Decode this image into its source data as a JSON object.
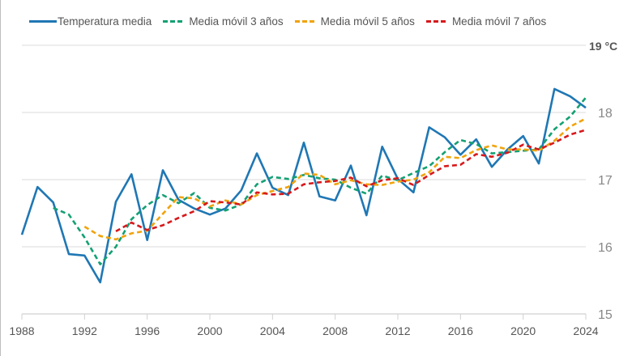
{
  "chart_data": {
    "type": "line",
    "title": "",
    "xlabel": "",
    "ylabel": "",
    "unit_label": "°C",
    "ylim": [
      15,
      19
    ],
    "xlim": [
      1988,
      2024
    ],
    "grid": true,
    "legend_position": "top",
    "x_ticks": [
      1988,
      1992,
      1996,
      2000,
      2004,
      2008,
      2012,
      2016,
      2020,
      2024
    ],
    "y_ticks": [
      15,
      16,
      17,
      18,
      19
    ],
    "x": [
      1988,
      1989,
      1990,
      1991,
      1992,
      1993,
      1994,
      1995,
      1996,
      1997,
      1998,
      1999,
      2000,
      2001,
      2002,
      2003,
      2004,
      2005,
      2006,
      2007,
      2008,
      2009,
      2010,
      2011,
      2012,
      2013,
      2014,
      2015,
      2016,
      2017,
      2018,
      2019,
      2020,
      2021,
      2022,
      2023,
      2024
    ],
    "series": [
      {
        "name": "Temperatura media",
        "color": "#1f77b4",
        "dashed": false,
        "values": [
          16.18,
          16.89,
          16.66,
          15.89,
          15.87,
          15.47,
          16.67,
          17.08,
          16.1,
          17.14,
          16.7,
          16.57,
          16.48,
          16.57,
          16.84,
          17.39,
          16.88,
          16.77,
          17.55,
          16.75,
          16.69,
          17.21,
          16.47,
          17.49,
          17.01,
          16.81,
          17.78,
          17.63,
          17.37,
          17.6,
          17.19,
          17.45,
          17.65,
          17.24,
          18.35,
          18.24,
          18.07
        ]
      },
      {
        "name": "Media móvil 3 años",
        "color": "#14a073",
        "dashed": true,
        "values": [
          null,
          null,
          16.58,
          16.48,
          16.14,
          15.74,
          16.0,
          16.41,
          16.62,
          16.77,
          16.65,
          16.8,
          16.58,
          16.54,
          16.63,
          16.93,
          17.04,
          17.01,
          17.07,
          17.02,
          17.0,
          16.88,
          16.79,
          17.06,
          16.99,
          17.1,
          17.2,
          17.41,
          17.59,
          17.53,
          17.39,
          17.41,
          17.43,
          17.45,
          17.75,
          17.94,
          18.22
        ]
      },
      {
        "name": "Media móvil 5 años",
        "color": "#f0a30a",
        "dashed": true,
        "values": [
          null,
          null,
          null,
          null,
          16.3,
          16.16,
          16.11,
          16.2,
          16.24,
          16.49,
          16.74,
          16.72,
          16.6,
          16.69,
          16.63,
          16.77,
          16.83,
          16.89,
          17.09,
          17.07,
          16.93,
          16.99,
          16.93,
          16.92,
          16.97,
          17.0,
          17.11,
          17.34,
          17.32,
          17.44,
          17.51,
          17.45,
          17.45,
          17.43,
          17.58,
          17.79,
          17.91
        ]
      },
      {
        "name": "Media móvil 7 años",
        "color": "#d7191c",
        "dashed": true,
        "values": [
          null,
          null,
          null,
          null,
          null,
          null,
          16.23,
          16.36,
          16.25,
          16.32,
          16.43,
          16.53,
          16.68,
          16.66,
          16.63,
          16.81,
          16.78,
          16.79,
          16.93,
          16.96,
          16.98,
          17.03,
          16.9,
          16.99,
          17.02,
          16.92,
          17.07,
          17.2,
          17.22,
          17.38,
          17.34,
          17.4,
          17.52,
          17.45,
          17.55,
          17.67,
          17.74
        ]
      }
    ]
  }
}
